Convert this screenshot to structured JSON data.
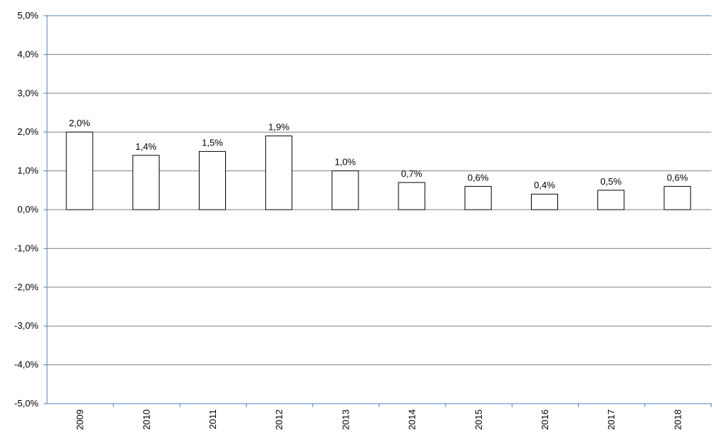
{
  "chart_data": {
    "type": "bar",
    "categories": [
      "2009",
      "2010",
      "2011",
      "2012",
      "2013",
      "2014",
      "2015",
      "2016",
      "2017",
      "2018"
    ],
    "values": [
      2.0,
      1.4,
      1.5,
      1.9,
      1.0,
      0.7,
      0.6,
      0.4,
      0.5,
      0.6
    ],
    "value_labels": [
      "2,0%",
      "1,4%",
      "1,5%",
      "1,9%",
      "1,0%",
      "0,7%",
      "0,6%",
      "0,4%",
      "0,5%",
      "0,6%"
    ],
    "y_ticks": [
      5,
      4,
      3,
      2,
      1,
      0,
      -1,
      -2,
      -3,
      -4,
      -5
    ],
    "y_tick_labels": [
      "5,0%",
      "4,0%",
      "3,0%",
      "2,0%",
      "1,0%",
      "0,0%",
      "-1,0%",
      "-2,0%",
      "-3,0%",
      "-4,0%",
      "-5,0%"
    ],
    "ylim": [
      -5,
      5
    ],
    "title": "",
    "xlabel": "",
    "ylabel": "",
    "grid": true,
    "legend": "none",
    "colors": {
      "bar_fill": "#ffffff",
      "bar_stroke": "#000000",
      "gridline": "#808080",
      "axis": "#4f81bd"
    }
  }
}
